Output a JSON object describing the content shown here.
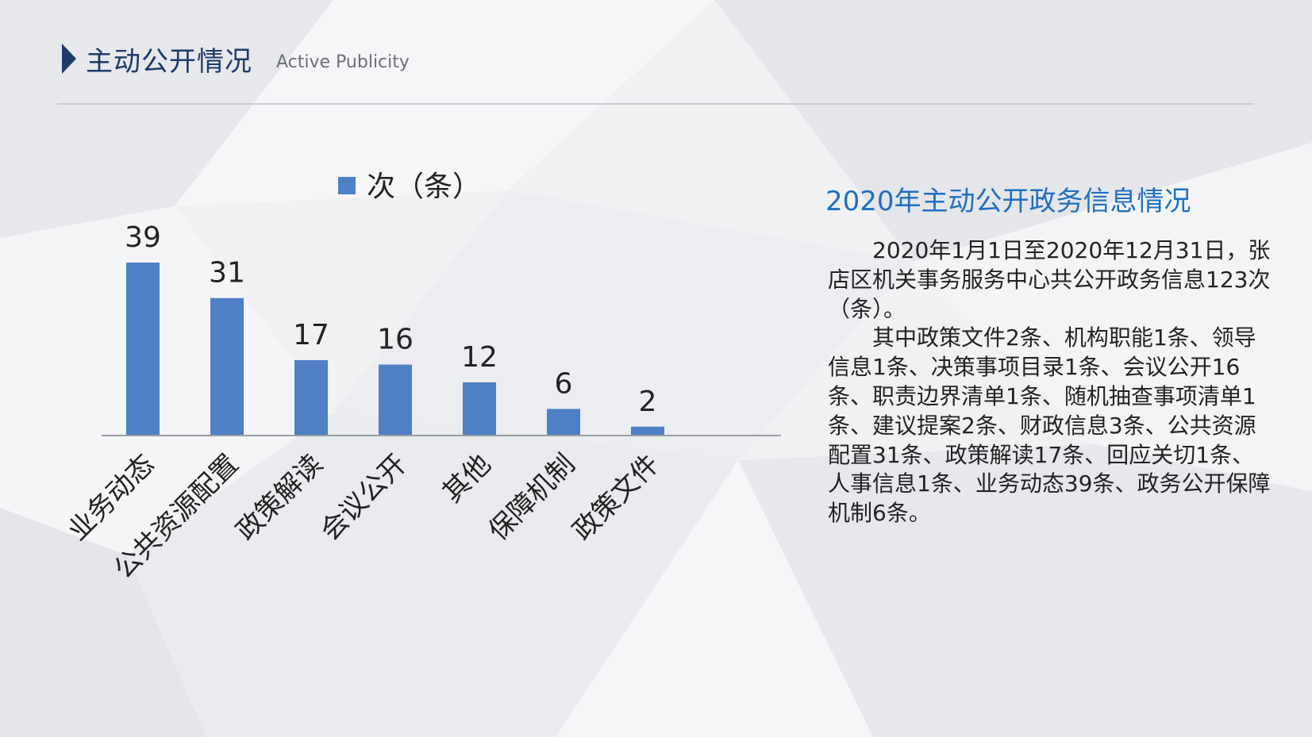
{
  "header": {
    "title": "主动公开情况",
    "subtitle": "Active Publicity"
  },
  "chart_data": {
    "type": "bar",
    "categories": [
      "业务动态",
      "公共资源配置",
      "政策解读",
      "会议公开",
      "其他",
      "保障机制",
      "政策文件"
    ],
    "series": [
      {
        "name": "次（条）",
        "values": [
          39,
          31,
          17,
          16,
          12,
          6,
          2
        ]
      }
    ],
    "ylim": [
      0,
      39
    ],
    "grid": false,
    "legend": "top",
    "data_labels": true,
    "bar_color": "#4f7fc4"
  },
  "info": {
    "title": "2020年主动公开政务信息情况",
    "paragraphs": [
      "2020年1月1日至2020年12月31日，张店区机关事务服务中心共公开政务信息123次（条）。",
      "其中政策文件2条、机构职能1条、领导信息1条、决策事项目录1条、会议公开16条、职责边界清单1条、随机抽查事项清单1条、建议提案2条、财政信息3条、公共资源配置31条、政策解读17条、回应关切1条、人事信息1条、业务动态39条、政务公开保障机制6条。"
    ]
  },
  "colors": {
    "header_title": "#1e3a6a",
    "info_title": "#1f6fc0",
    "bar": "#4f7fc4"
  }
}
